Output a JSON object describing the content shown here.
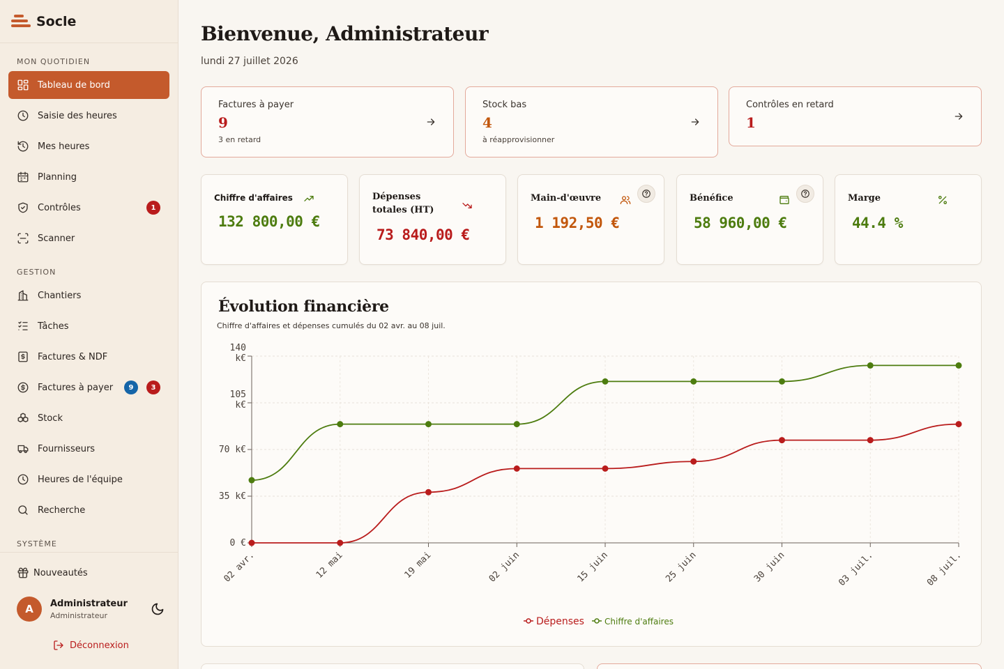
{
  "brand": {
    "name": "Socle"
  },
  "sidebar": {
    "section_daily": "MON QUOTIDIEN",
    "section_gestion": "GESTION",
    "section_system": "SYSTÈME",
    "daily_items": [
      {
        "label": "Tableau de bord",
        "icon": "dashboard-icon"
      },
      {
        "label": "Saisie des heures",
        "icon": "clock-icon"
      },
      {
        "label": "Mes heures",
        "icon": "history-icon"
      },
      {
        "label": "Planning",
        "icon": "calendar-icon"
      },
      {
        "label": "Contrôles",
        "icon": "shield-icon",
        "badge": "1"
      },
      {
        "label": "Scanner",
        "icon": "scan-icon"
      }
    ],
    "gestion_items": [
      {
        "label": "Chantiers",
        "icon": "building-icon"
      },
      {
        "label": "Tâches",
        "icon": "tasks-icon"
      },
      {
        "label": "Factures & NDF",
        "icon": "invoice-icon"
      },
      {
        "label": "Factures à payer",
        "icon": "dollar-icon",
        "badge_blue": "9",
        "badge_red": "3"
      },
      {
        "label": "Stock",
        "icon": "boxes-icon"
      },
      {
        "label": "Fournisseurs",
        "icon": "truck-icon"
      },
      {
        "label": "Heures de l'équipe",
        "icon": "clock-icon"
      },
      {
        "label": "Recherche",
        "icon": "search-icon"
      }
    ],
    "news": "Nouveautés",
    "user": {
      "initial": "A",
      "name": "Administrateur",
      "role": "Administrateur"
    },
    "logout": "Déconnexion"
  },
  "header": {
    "title": "Bienvenue, Administrateur",
    "date": "lundi 27 juillet 2026"
  },
  "alerts": [
    {
      "title": "Factures à payer",
      "value": "9",
      "sub": "3 en retard",
      "color": "#b91c1c"
    },
    {
      "title": "Stock bas",
      "value": "4",
      "sub": "à réapprovisionner",
      "color": "#c2570c"
    },
    {
      "title": "Contrôles en retard",
      "value": "1",
      "sub": "",
      "color": "#b91c1c"
    }
  ],
  "kpis": [
    {
      "title": "Chiffre d'affaires",
      "value": "132 800,00 €",
      "color": "#4d7c0f",
      "icon": "trending-up-icon"
    },
    {
      "title": "Dépenses totales (HT)",
      "value": "73 840,00 €",
      "color": "#b91c1c",
      "icon": "trending-down-icon"
    },
    {
      "title": "Main-d'œuvre",
      "value": "1 192,50 €",
      "color": "#c2570c",
      "icon": "users-icon"
    },
    {
      "title": "Bénéfice",
      "value": "58 960,00 €",
      "color": "#4d7c0f",
      "icon": "wallet-icon"
    },
    {
      "title": "Marge",
      "value": "44.4 %",
      "color": "#4d7c0f",
      "icon": "percent-icon"
    }
  ],
  "chart": {
    "title": "Évolution financière",
    "subtitle": "Chiffre d'affaires et dépenses cumulés du 02 avr. au 08 juil."
  },
  "chart_data": {
    "type": "line",
    "categories": [
      "02 avr.",
      "12 mai",
      "19 mai",
      "02 juin",
      "15 juin",
      "25 juin",
      "30 juin",
      "03 juil.",
      "08 juil."
    ],
    "y_ticks": [
      "0 €",
      "35 k€",
      "70 k€",
      "105 k€",
      "140 k€"
    ],
    "ylim": [
      0,
      140000
    ],
    "grid": true,
    "legend_position": "bottom",
    "series": [
      {
        "name": "Dépenses",
        "color": "#b91c1c",
        "values": [
          0,
          0,
          38000,
          55700,
          55700,
          61000,
          77000,
          77000,
          89000
        ]
      },
      {
        "name": "Chiffre d'affaires",
        "color": "#4d7c0f",
        "values": [
          47000,
          89000,
          89000,
          89000,
          121000,
          121000,
          121000,
          133000,
          133000
        ]
      }
    ]
  }
}
